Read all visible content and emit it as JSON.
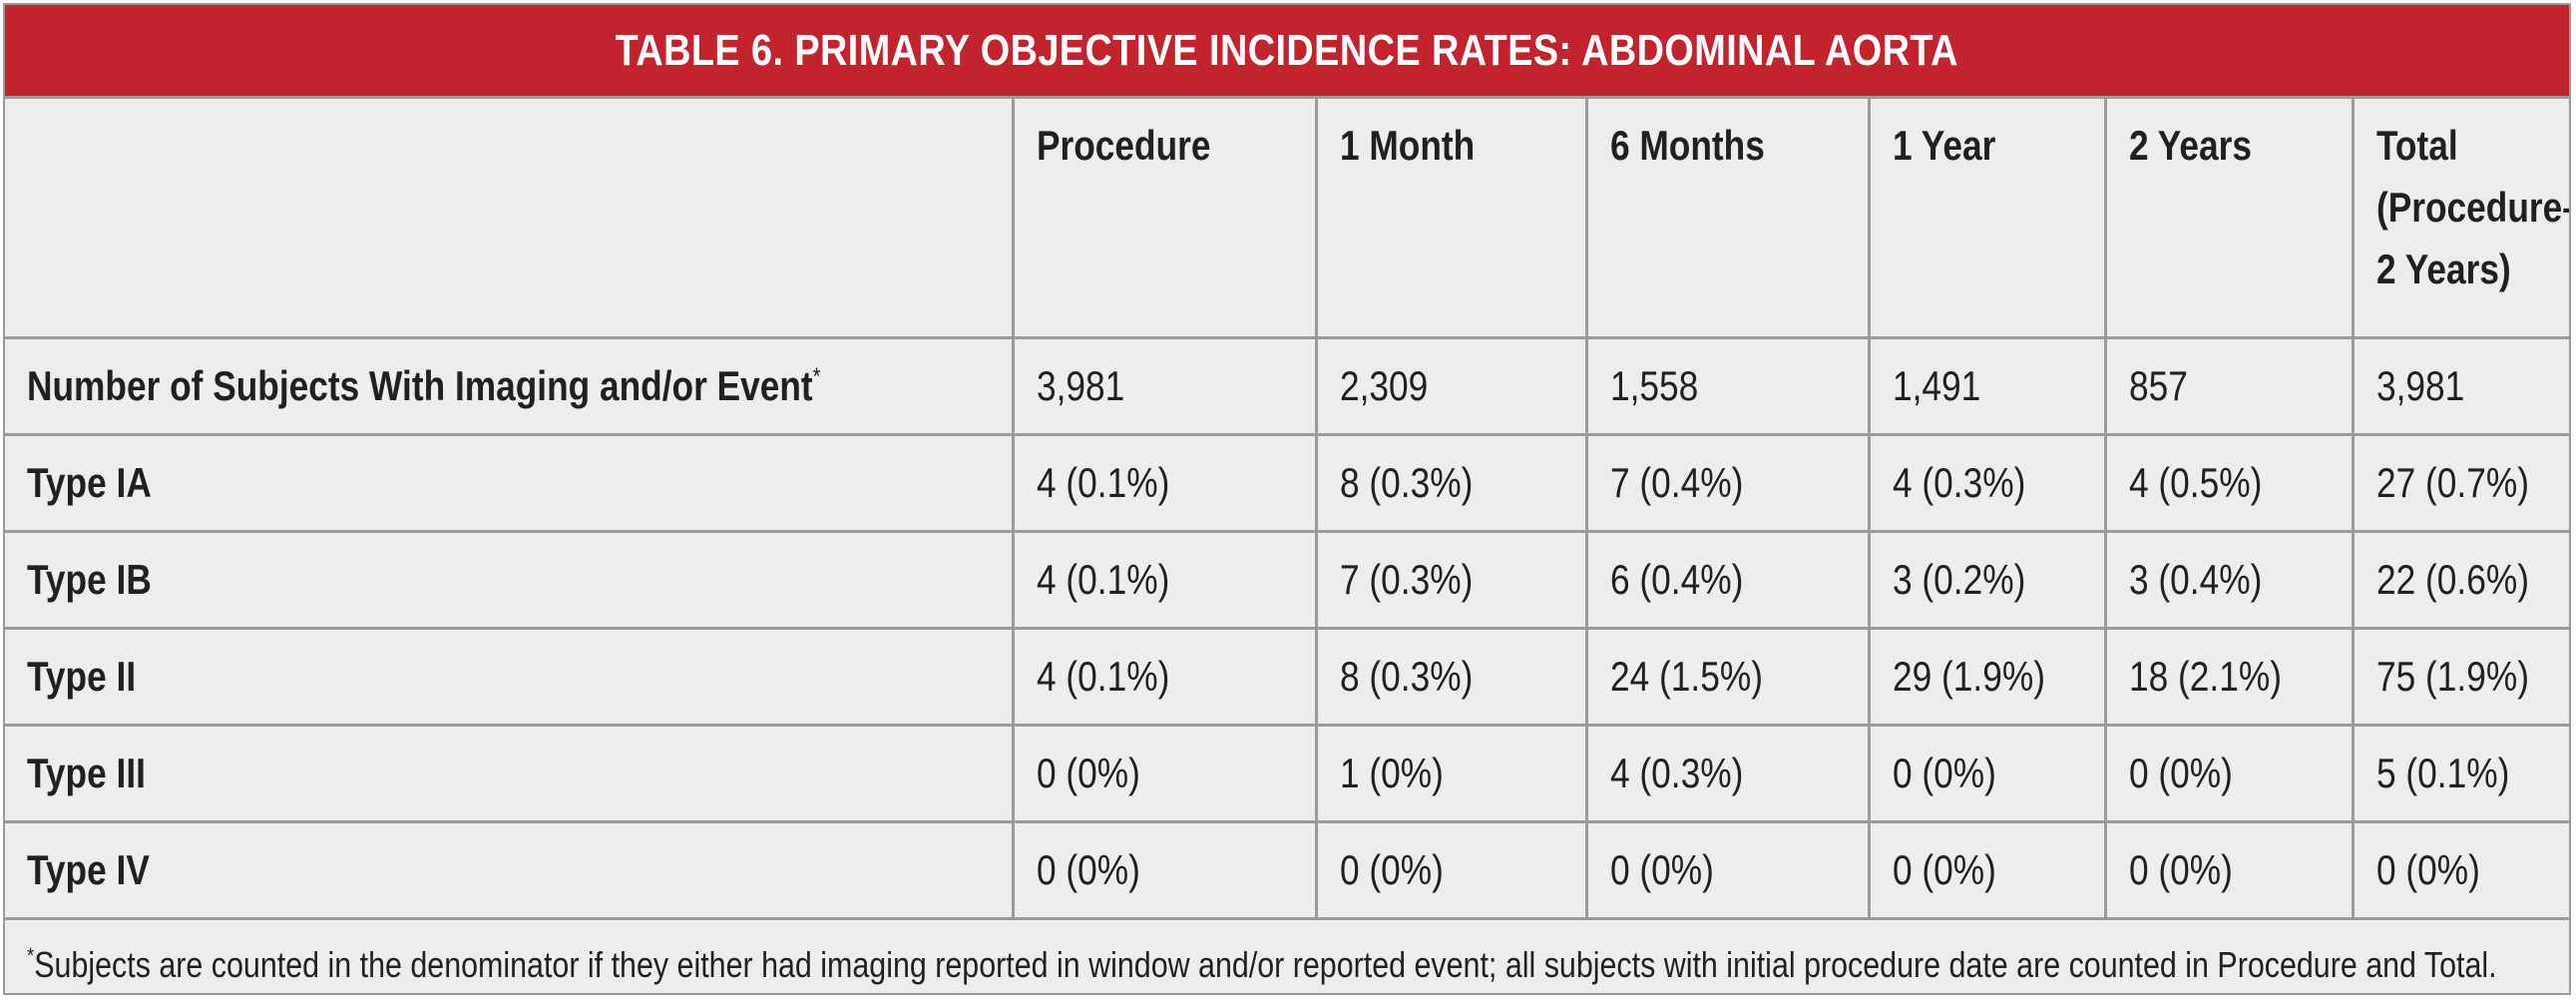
{
  "title": "TABLE 6.  PRIMARY OBJECTIVE INCIDENCE RATES: ABDOMINAL AORTA",
  "columns": [
    "",
    "Procedure",
    "1 Month",
    "6 Months",
    "1 Year",
    "2 Years",
    "Total (Procedure– 2 Years)"
  ],
  "rows": [
    {
      "label": "Number of Subjects With Imaging and/or Event",
      "marker": "*",
      "cells": [
        "3,981",
        "2,309",
        "1,558",
        "1,491",
        "857",
        "3,981"
      ]
    },
    {
      "label": "Type IA",
      "marker": "",
      "cells": [
        "4 (0.1%)",
        "8 (0.3%)",
        "7 (0.4%)",
        "4 (0.3%)",
        "4 (0.5%)",
        "27 (0.7%)"
      ]
    },
    {
      "label": "Type IB",
      "marker": "",
      "cells": [
        "4 (0.1%)",
        "7 (0.3%)",
        "6 (0.4%)",
        "3 (0.2%)",
        "3 (0.4%)",
        "22 (0.6%)"
      ]
    },
    {
      "label": "Type II",
      "marker": "",
      "cells": [
        "4 (0.1%)",
        "8 (0.3%)",
        "24 (1.5%)",
        "29 (1.9%)",
        "18 (2.1%)",
        "75 (1.9%)"
      ]
    },
    {
      "label": "Type III",
      "marker": "",
      "cells": [
        "0 (0%)",
        "1 (0%)",
        "4 (0.3%)",
        "0 (0%)",
        "0 (0%)",
        "5 (0.1%)"
      ]
    },
    {
      "label": "Type IV",
      "marker": "",
      "cells": [
        "0 (0%)",
        "0 (0%)",
        "0 (0%)",
        "0 (0%)",
        "0 (0%)",
        "0 (0%)"
      ]
    }
  ],
  "footnote": {
    "marker": "*",
    "text": "Subjects are counted in the denominator if they either had imaging reported in window and/or reported event; all subjects with initial procedure date are counted in Procedure and Total."
  },
  "colors": {
    "title_bar": "#c2232c",
    "title_text": "#ffffff",
    "table_bg": "#eceeed",
    "grid_lines": "#9a9a9a",
    "body_text": "#231f20"
  }
}
